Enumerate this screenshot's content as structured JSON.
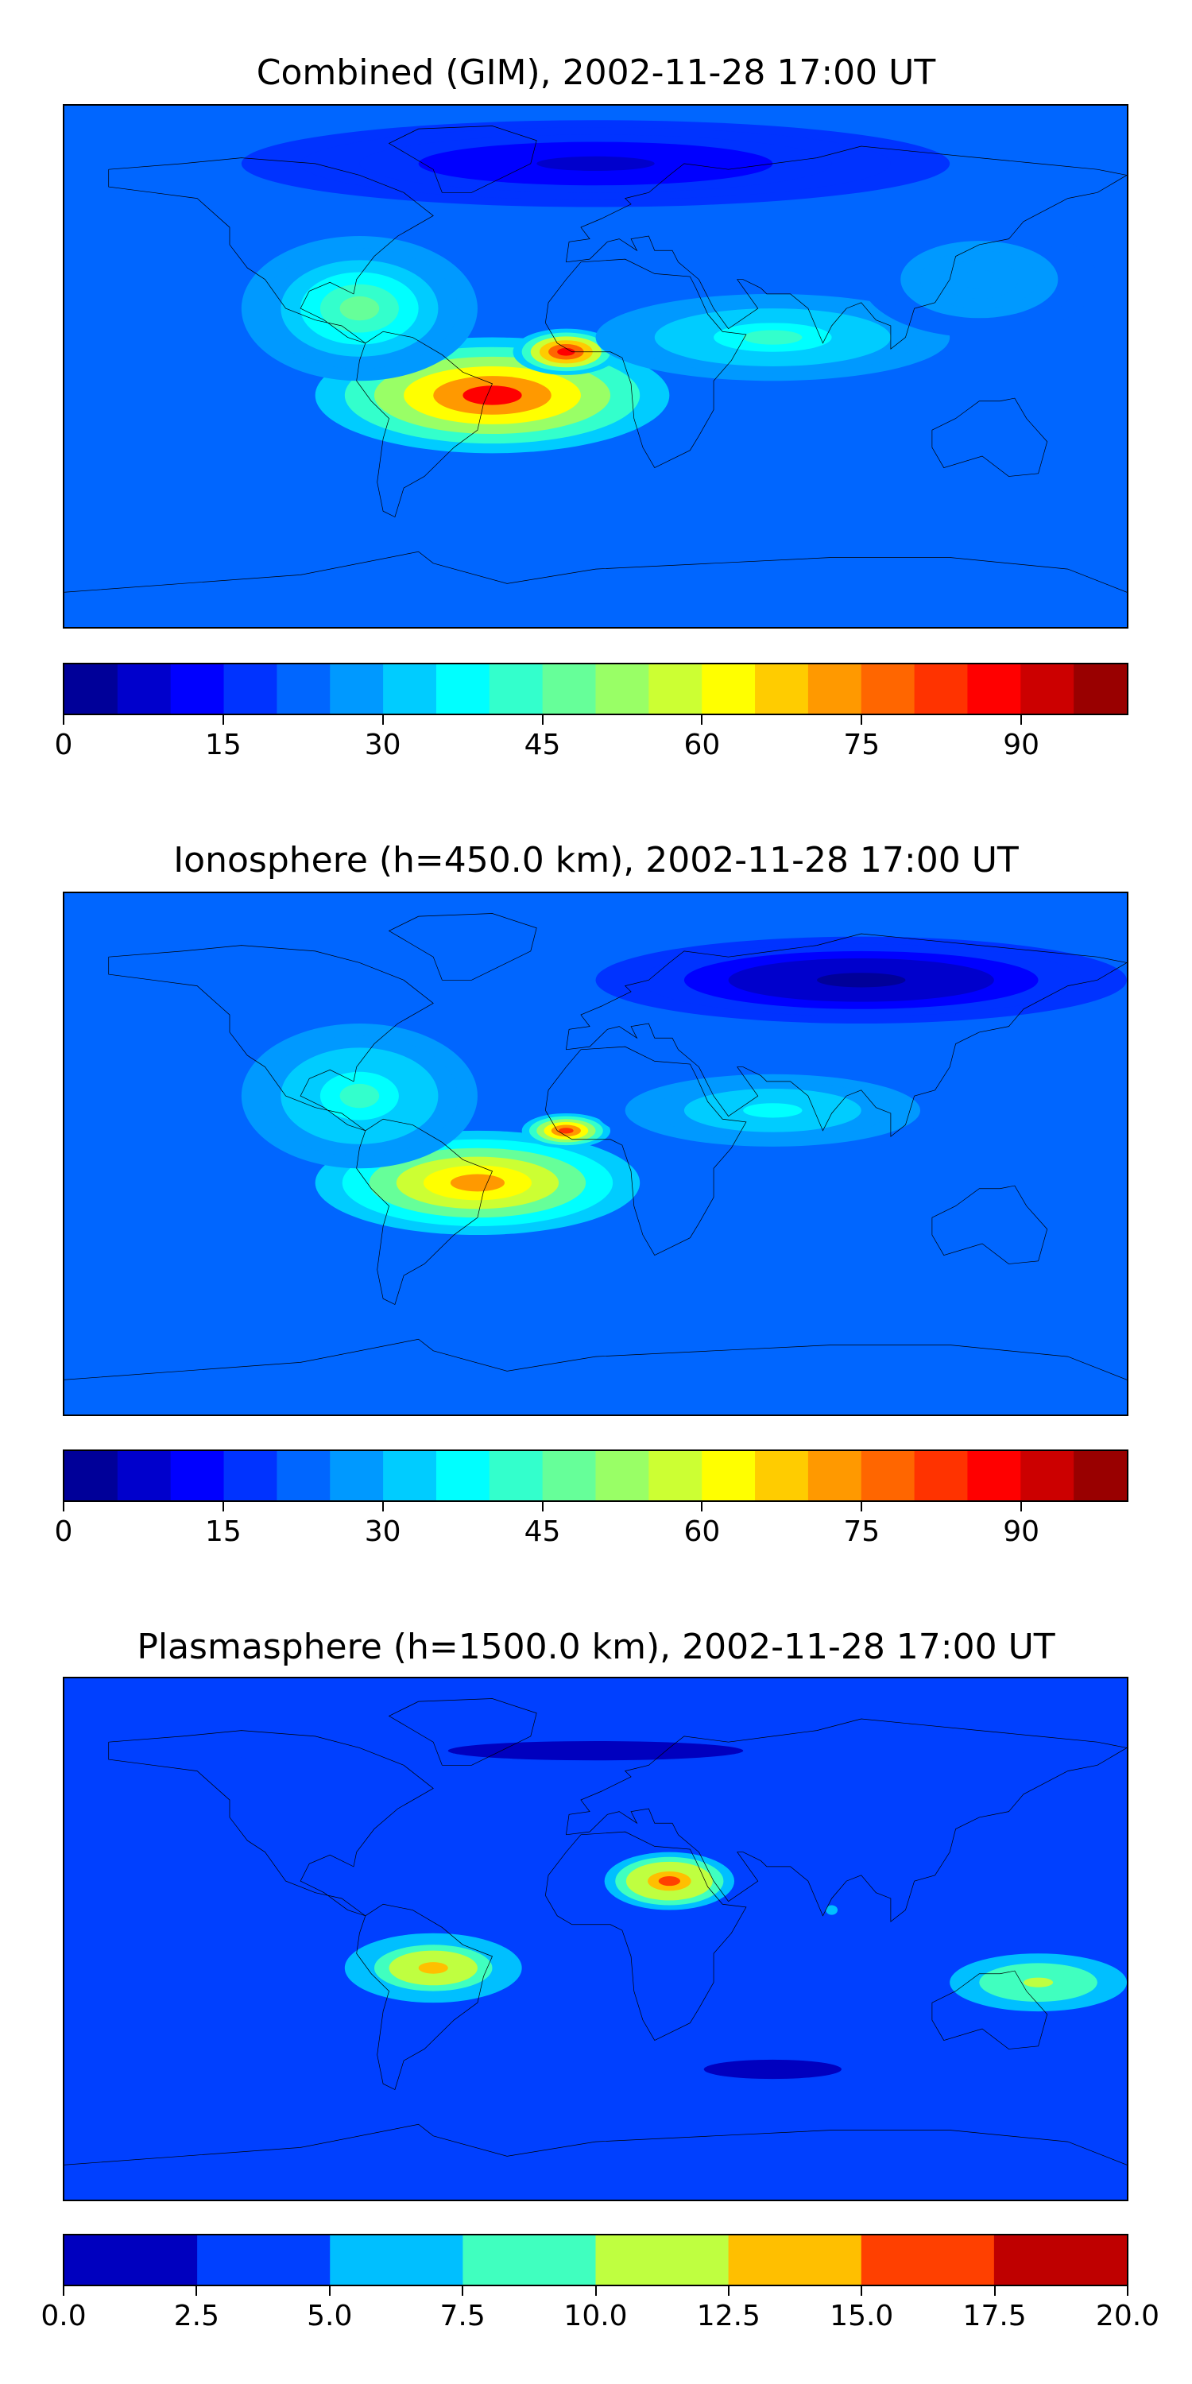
{
  "chart_data": [
    {
      "type": "heatmap",
      "title": "Combined (GIM), 2002-11-28 17:00 UT",
      "projection": "equirectangular world map with coastlines",
      "colorbar": {
        "levels": [
          0,
          5,
          10,
          15,
          20,
          25,
          30,
          35,
          40,
          45,
          50,
          55,
          60,
          65,
          70,
          75,
          80,
          85,
          90,
          95,
          100
        ],
        "tick_values": [
          0,
          15,
          30,
          45,
          60,
          75,
          90
        ],
        "tick_labels": [
          "0",
          "15",
          "30",
          "45",
          "60",
          "75",
          "90"
        ],
        "colormap": "jet"
      },
      "value_range": [
        0,
        100
      ],
      "features": [
        {
          "lon": -35,
          "lat": -10,
          "value": 85,
          "rx": 60,
          "ry": 20
        },
        {
          "lon": -10,
          "lat": 5,
          "value": 88,
          "rx": 18,
          "ry": 8
        },
        {
          "lon": -80,
          "lat": 20,
          "value": 45,
          "rx": 40,
          "ry": 25
        },
        {
          "lon": 60,
          "lat": 10,
          "value": 40,
          "rx": 60,
          "ry": 15
        },
        {
          "lon": 130,
          "lat": 30,
          "value": 28,
          "rx": 40,
          "ry": 20
        },
        {
          "lon": 0,
          "lat": 70,
          "value": 8,
          "rx": 120,
          "ry": 15
        }
      ]
    },
    {
      "type": "heatmap",
      "title": "Ionosphere  (h=450.0 km), 2002-11-28 17:00 UT",
      "projection": "equirectangular world map with coastlines",
      "colorbar": {
        "levels": [
          0,
          5,
          10,
          15,
          20,
          25,
          30,
          35,
          40,
          45,
          50,
          55,
          60,
          65,
          70,
          75,
          80,
          85,
          90,
          95,
          100
        ],
        "tick_values": [
          0,
          15,
          30,
          45,
          60,
          75,
          90
        ],
        "tick_labels": [
          "0",
          "15",
          "30",
          "45",
          "60",
          "75",
          "90"
        ],
        "colormap": "jet"
      },
      "value_range": [
        0,
        100
      ],
      "features": [
        {
          "lon": -40,
          "lat": -10,
          "value": 72,
          "rx": 55,
          "ry": 18
        },
        {
          "lon": -10,
          "lat": 8,
          "value": 82,
          "rx": 15,
          "ry": 6
        },
        {
          "lon": -80,
          "lat": 20,
          "value": 40,
          "rx": 40,
          "ry": 25
        },
        {
          "lon": 60,
          "lat": 15,
          "value": 35,
          "rx": 60,
          "ry": 15
        },
        {
          "lon": 90,
          "lat": 60,
          "value": 3,
          "rx": 90,
          "ry": 15
        }
      ]
    },
    {
      "type": "heatmap",
      "title": "Plasmasphere (h=1500.0 km), 2002-11-28 17:00 UT",
      "projection": "equirectangular world map with coastlines",
      "colorbar": {
        "levels": [
          0,
          2.5,
          5,
          7.5,
          10,
          12.5,
          15,
          17.5,
          20
        ],
        "tick_values": [
          0,
          2.5,
          5,
          7.5,
          10,
          12.5,
          15,
          17.5,
          20
        ],
        "tick_labels": [
          "0.0",
          "2.5",
          "5.0",
          "7.5",
          "10.0",
          "12.5",
          "15.0",
          "17.5",
          "20.0"
        ],
        "colormap": "jet"
      },
      "value_range": [
        0,
        20
      ],
      "features": [
        {
          "lon": 25,
          "lat": 20,
          "value": 16,
          "rx": 22,
          "ry": 10
        },
        {
          "lon": -55,
          "lat": -10,
          "value": 13,
          "rx": 30,
          "ry": 12
        },
        {
          "lon": 80,
          "lat": 10,
          "value": 5,
          "rx": 12,
          "ry": 10
        },
        {
          "lon": 150,
          "lat": -15,
          "value": 11,
          "rx": 30,
          "ry": 10
        },
        {
          "lon": 60,
          "lat": -45,
          "value": 2,
          "rx": 70,
          "ry": 10
        },
        {
          "lon": 0,
          "lat": 65,
          "value": 2,
          "rx": 150,
          "ry": 10
        }
      ]
    }
  ]
}
